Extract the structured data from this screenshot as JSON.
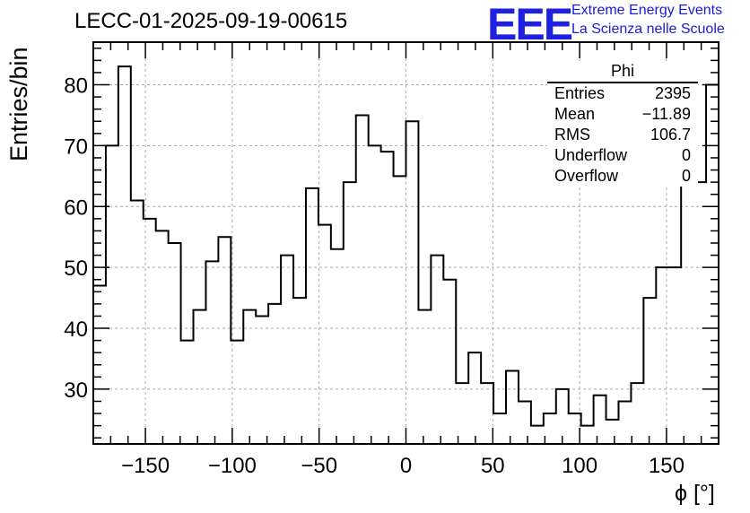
{
  "chart_data": {
    "type": "histogram",
    "title": "LECC-01-2025-09-19-00615",
    "xlabel": "ϕ [°]",
    "ylabel": "Entries/bin",
    "xlim": [
      -180,
      180
    ],
    "ylim": [
      21,
      87
    ],
    "grid": true,
    "bin_width": 7.2,
    "values": [
      47,
      70,
      83,
      61,
      58,
      56,
      54,
      38,
      43,
      51,
      55,
      38,
      43,
      42,
      44,
      52,
      45,
      63,
      57,
      53,
      64,
      75,
      70,
      69,
      65,
      74,
      43,
      52,
      48,
      31,
      36,
      31,
      26,
      33,
      28,
      24,
      26,
      30,
      26,
      24,
      29,
      25,
      28,
      31,
      45,
      50,
      50,
      65,
      64,
      80
    ],
    "x_ticks": [
      "−150",
      "−100",
      "−50",
      "0",
      "50",
      "100",
      "150"
    ],
    "x_tick_values": [
      -150,
      -100,
      -50,
      0,
      50,
      100,
      150
    ],
    "y_ticks": [
      "30",
      "40",
      "50",
      "60",
      "70",
      "80"
    ],
    "y_tick_values": [
      30,
      40,
      50,
      60,
      70,
      80
    ],
    "stats": {
      "name": "Phi",
      "rows": [
        {
          "label": "Entries",
          "value": "2395"
        },
        {
          "label": "Mean",
          "value": "−11.89"
        },
        {
          "label": "RMS",
          "value": "106.7"
        },
        {
          "label": "Underflow",
          "value": "0"
        },
        {
          "label": "Overflow",
          "value": "0"
        }
      ]
    }
  },
  "logo": {
    "mark": "EEE",
    "line1": "Extreme Energy Events",
    "line2": "La Scienza nelle Scuole",
    "color": "#1a1ae0"
  }
}
